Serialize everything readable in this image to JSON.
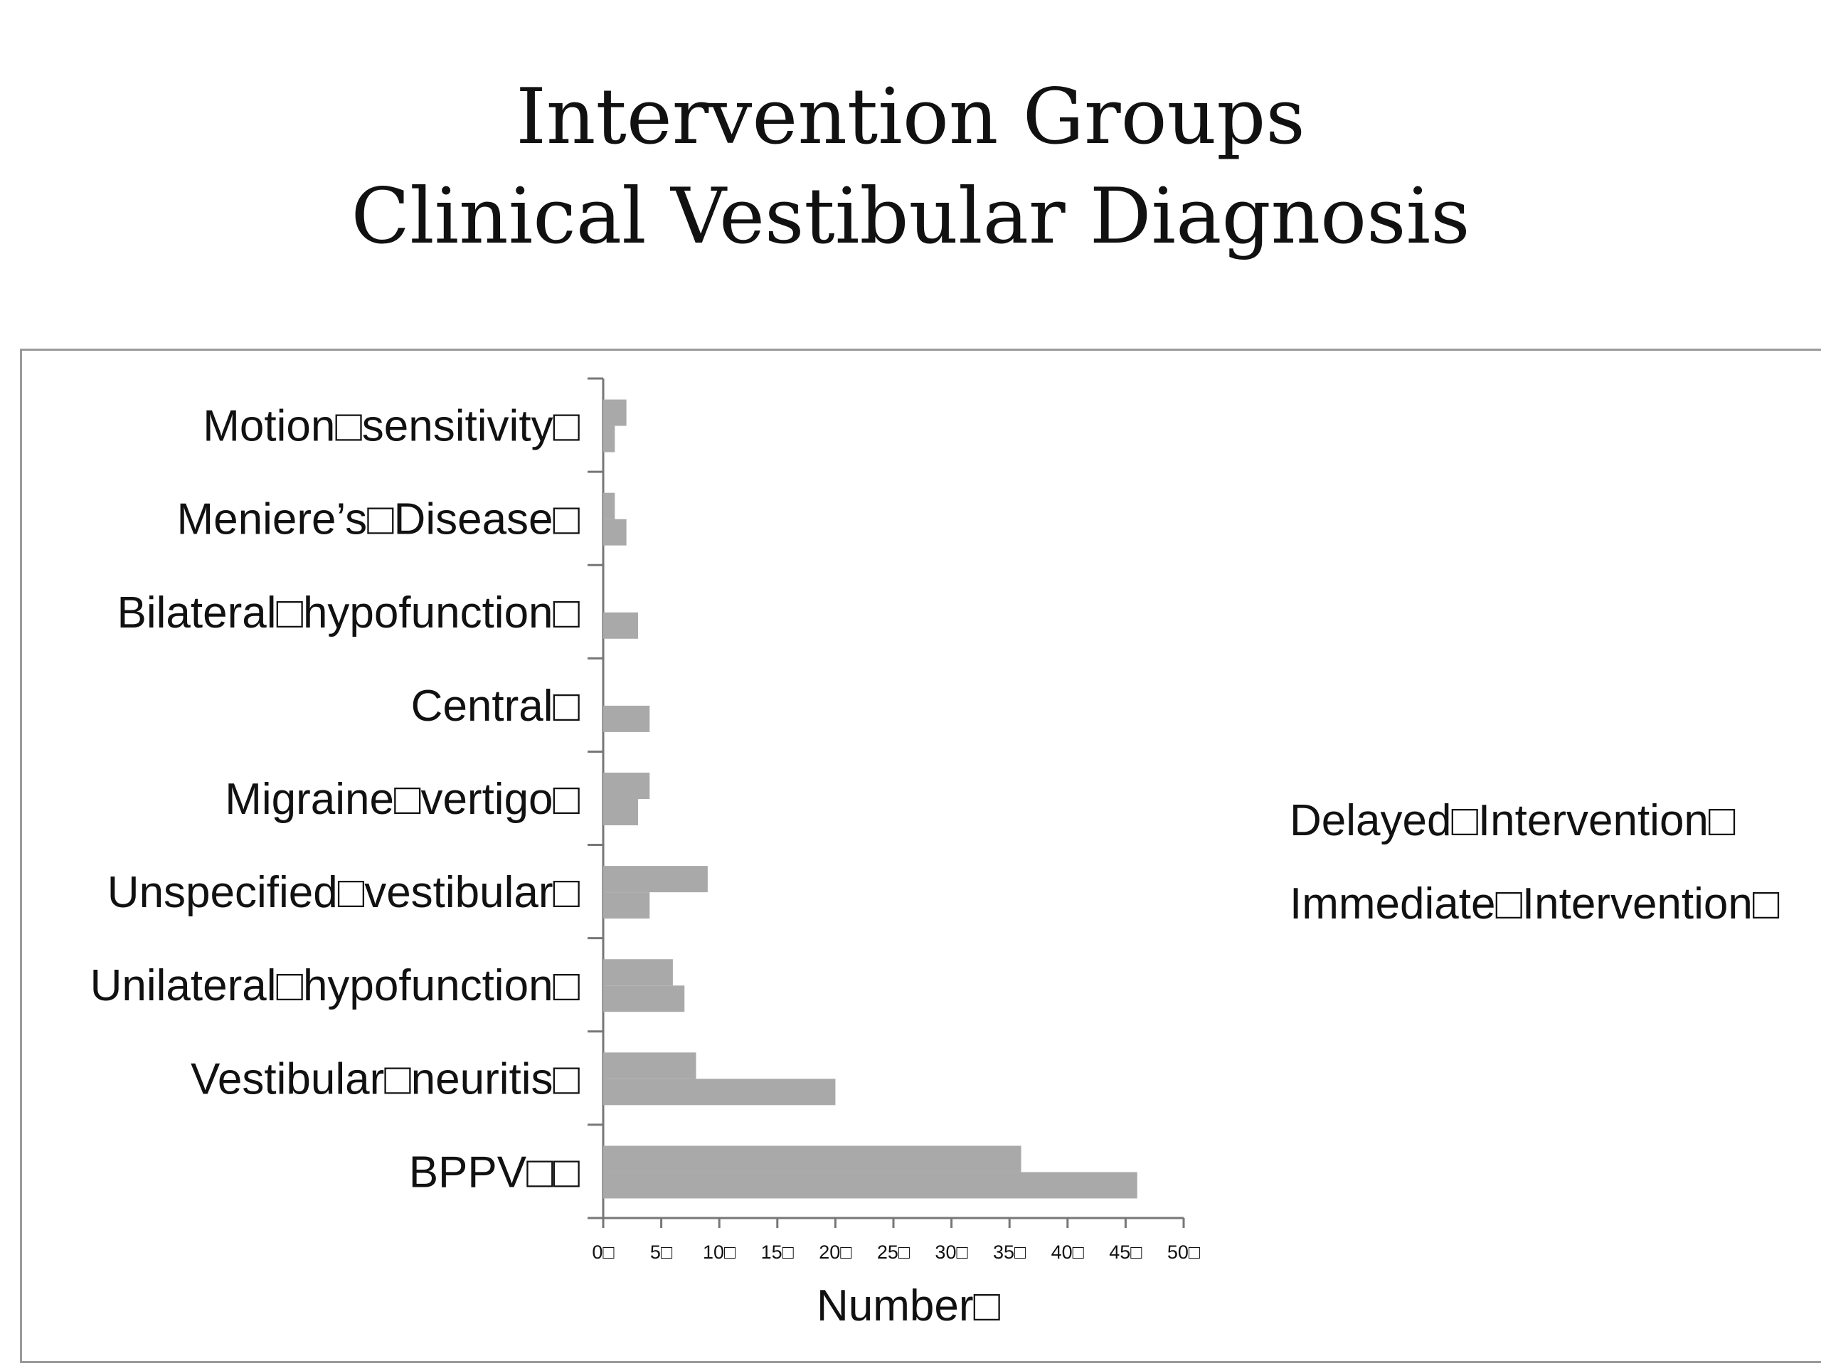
{
  "slide": {
    "title_line1": "Intervention Groups",
    "title_line2": "Clinical Vestibular Diagnosis"
  },
  "chart_data": {
    "type": "bar",
    "orientation": "horizontal",
    "categories": [
      "Motion\u0000sensitivity\u0000",
      "Meniere’s\u0000Disease\u0000",
      "Bilateral\u0000hypofunction\u0000",
      "Central\u0000",
      "Migraine\u0000vertigo\u0000",
      "Unspecified\u0000vestibular\u0000",
      "Unilateral\u0000hypofunction\u0000",
      "Vestibular\u0000neuritis\u0000",
      "BPPV\u0000\u0000"
    ],
    "series": [
      {
        "name": "Delayed\u0000Intervention\u0000",
        "values": [
          2,
          1,
          0,
          0,
          4,
          9,
          6,
          8,
          36
        ]
      },
      {
        "name": "Immediate\u0000Intervention\u0000",
        "values": [
          1,
          2,
          3,
          4,
          3,
          4,
          7,
          20,
          46
        ]
      }
    ],
    "xlabel": "Number\u0000",
    "x_ticks": [
      "0\u0000",
      "5\u0000",
      "10\u0000",
      "15\u0000",
      "20\u0000",
      "25\u0000",
      "30\u0000",
      "35\u0000",
      "40\u0000",
      "45\u0000",
      "50\u0000"
    ],
    "xlim": [
      0,
      50
    ],
    "grid": false,
    "legend_position": "right",
    "bar_color": "#a9a9a9"
  }
}
